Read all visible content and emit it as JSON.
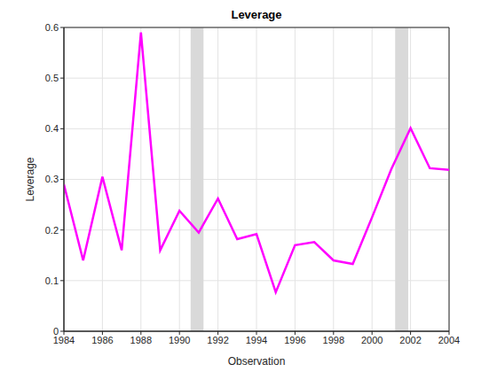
{
  "chart_data": {
    "type": "line",
    "title": "Leverage",
    "x_label": "Observation",
    "y_label": "Leverage",
    "x": [
      1984,
      1985,
      1986,
      1987,
      1988,
      1989,
      1990,
      1991,
      1992,
      1993,
      1994,
      1995,
      1996,
      1997,
      1998,
      1999,
      2000,
      2001,
      2002,
      2003,
      2004
    ],
    "values": [
      0.29,
      0.14,
      0.305,
      0.16,
      0.59,
      0.16,
      0.238,
      0.195,
      0.262,
      0.182,
      0.192,
      0.077,
      0.17,
      0.176,
      0.14,
      0.133,
      0.225,
      0.32,
      0.401,
      0.322,
      0.319
    ],
    "color": "#ff00ff",
    "marker": "none",
    "recessions": [
      [
        1990.58,
        1991.25
      ],
      [
        2001.2,
        2001.88
      ]
    ],
    "xlim": [
      1984,
      2004
    ],
    "xticks": [
      1984,
      1986,
      1988,
      1990,
      1992,
      1994,
      1996,
      1998,
      2000,
      2002,
      2004
    ],
    "ylim": [
      0,
      0.6
    ],
    "yticks": [
      0,
      0.1,
      0.2,
      0.3,
      0.4,
      0.5,
      0.6
    ],
    "grid": true
  }
}
